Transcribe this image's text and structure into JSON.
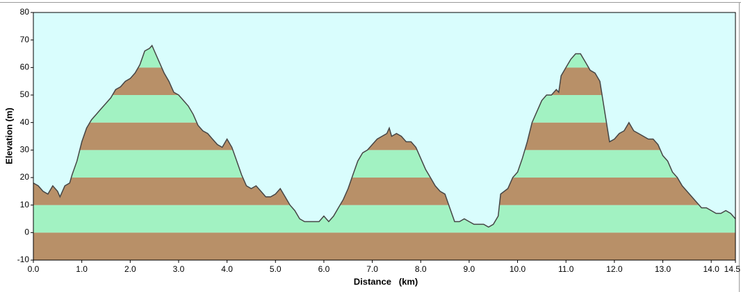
{
  "chart_data": {
    "type": "elevation-profile",
    "xlabel": "Distance   (km)",
    "ylabel": "Elevation (m)",
    "x": [
      0.0,
      0.1,
      0.2,
      0.3,
      0.4,
      0.5,
      0.55,
      0.65,
      0.75,
      0.8,
      0.9,
      1.0,
      1.1,
      1.2,
      1.3,
      1.4,
      1.5,
      1.6,
      1.7,
      1.8,
      1.9,
      2.0,
      2.1,
      2.2,
      2.3,
      2.4,
      2.45,
      2.5,
      2.6,
      2.7,
      2.8,
      2.9,
      3.0,
      3.1,
      3.2,
      3.3,
      3.4,
      3.5,
      3.6,
      3.7,
      3.8,
      3.9,
      4.0,
      4.1,
      4.2,
      4.3,
      4.4,
      4.5,
      4.6,
      4.7,
      4.8,
      4.9,
      5.0,
      5.1,
      5.2,
      5.3,
      5.4,
      5.5,
      5.6,
      5.8,
      5.9,
      6.0,
      6.1,
      6.2,
      6.3,
      6.4,
      6.5,
      6.6,
      6.7,
      6.8,
      6.9,
      7.0,
      7.1,
      7.2,
      7.3,
      7.35,
      7.4,
      7.5,
      7.6,
      7.7,
      7.8,
      7.9,
      8.0,
      8.1,
      8.2,
      8.3,
      8.4,
      8.5,
      8.6,
      8.7,
      8.8,
      8.9,
      9.0,
      9.1,
      9.2,
      9.3,
      9.4,
      9.5,
      9.6,
      9.65,
      9.8,
      9.9,
      10.0,
      10.1,
      10.2,
      10.3,
      10.4,
      10.5,
      10.6,
      10.7,
      10.8,
      10.85,
      10.9,
      11.0,
      11.1,
      11.2,
      11.3,
      11.4,
      11.5,
      11.6,
      11.7,
      11.8,
      11.9,
      12.0,
      12.1,
      12.2,
      12.3,
      12.4,
      12.5,
      12.6,
      12.7,
      12.8,
      12.9,
      13.0,
      13.1,
      13.2,
      13.3,
      13.4,
      13.5,
      13.6,
      13.7,
      13.8,
      13.9,
      14.0,
      14.1,
      14.2,
      14.3,
      14.4,
      14.5
    ],
    "values": [
      18,
      17,
      15,
      14,
      17,
      15,
      13,
      17,
      18,
      21,
      26,
      33,
      38,
      41,
      43,
      45,
      47,
      49,
      52,
      53,
      55,
      56,
      58,
      61,
      66,
      67,
      68,
      66,
      62,
      58,
      55,
      51,
      50,
      48,
      46,
      43,
      39,
      37,
      36,
      34,
      32,
      31,
      34,
      31,
      26,
      21,
      17,
      16,
      17,
      15,
      13,
      13,
      14,
      16,
      13,
      10,
      8,
      5,
      4,
      4,
      4,
      6,
      4,
      6,
      9,
      12,
      16,
      21,
      26,
      29,
      30,
      32,
      34,
      35,
      36,
      38,
      35,
      36,
      35,
      33,
      33,
      31,
      27,
      23,
      20,
      17,
      15,
      14,
      9,
      4,
      4,
      5,
      4,
      3,
      3,
      3,
      2,
      3,
      6,
      14,
      16,
      20,
      22,
      27,
      33,
      40,
      44,
      48,
      50,
      50,
      52,
      51,
      57,
      60,
      63,
      65,
      65,
      62,
      59,
      58,
      55,
      44,
      33,
      34,
      36,
      37,
      40,
      37,
      36,
      35,
      34,
      34,
      32,
      28,
      26,
      22,
      20,
      17,
      15,
      13,
      11,
      9,
      9,
      8,
      7,
      7,
      8,
      7,
      5
    ],
    "xlim": [
      0,
      14.5
    ],
    "ylim": [
      -10,
      80
    ],
    "xticks": [
      {
        "value": 0,
        "label": "0.0"
      },
      {
        "value": 1,
        "label": "1.0"
      },
      {
        "value": 2,
        "label": "2.0"
      },
      {
        "value": 3,
        "label": "3.0"
      },
      {
        "value": 4,
        "label": "4.0"
      },
      {
        "value": 5,
        "label": "5.0"
      },
      {
        "value": 6,
        "label": "6.0"
      },
      {
        "value": 7,
        "label": "7.0"
      },
      {
        "value": 8,
        "label": "8.0"
      },
      {
        "value": 9,
        "label": "9.0"
      },
      {
        "value": 10,
        "label": "10.0"
      },
      {
        "value": 11,
        "label": "11.0"
      },
      {
        "value": 12,
        "label": "12.0"
      },
      {
        "value": 13,
        "label": "13.0"
      },
      {
        "value": 14,
        "label": "14.0"
      },
      14.5
    ],
    "yticks": [
      -10,
      0,
      10,
      20,
      30,
      40,
      50,
      60,
      70,
      80
    ],
    "line_color": "#454545",
    "background": "#d9fdfd",
    "band_colors": [
      "#b89068",
      "#a2f2c2"
    ]
  }
}
